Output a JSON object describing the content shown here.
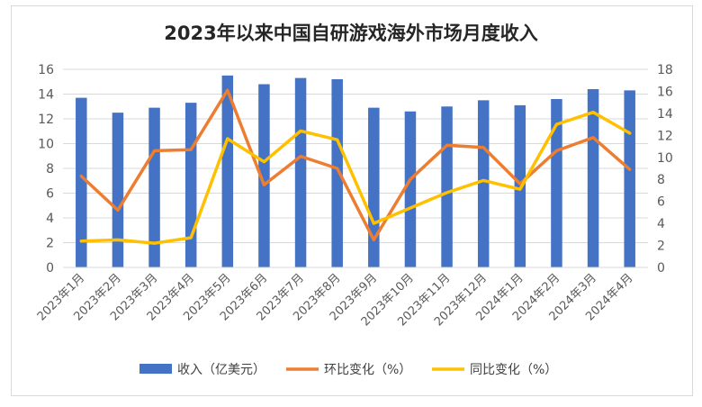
{
  "chart_data": {
    "type": "bar",
    "title": "2023年以来中国自研游戏海外市场月度收入",
    "categories": [
      "2023年1月",
      "2023年2月",
      "2023年3月",
      "2023年4月",
      "2023年5月",
      "2023年6月",
      "2023年7月",
      "2023年8月",
      "2023年9月",
      "2023年10月",
      "2023年11月",
      "2023年12月",
      "2024年1月",
      "2024年2月",
      "2024年3月",
      "2024年4月"
    ],
    "y_left": {
      "min": 0,
      "max": 16,
      "step": 2
    },
    "y_right": {
      "min": 0,
      "max": 18,
      "step": 2
    },
    "grid": true,
    "legend_position": "bottom",
    "series": [
      {
        "name": "收入（亿美元）",
        "type": "bar",
        "axis": "left",
        "color": "#4472c4",
        "values": [
          13.7,
          12.5,
          12.9,
          13.3,
          15.5,
          14.8,
          15.3,
          15.2,
          12.9,
          12.6,
          13.0,
          13.5,
          13.1,
          13.6,
          14.4,
          14.3
        ]
      },
      {
        "name": "环比变化（%）",
        "type": "line",
        "axis": "right",
        "color": "#ed7d31",
        "values": [
          8.3,
          5.2,
          10.6,
          10.7,
          16.1,
          7.5,
          10.1,
          9.0,
          2.5,
          8.0,
          11.1,
          10.9,
          7.6,
          10.6,
          11.8,
          8.9
        ]
      },
      {
        "name": "同比变化（%）",
        "type": "line",
        "axis": "right",
        "color": "#ffc000",
        "values": [
          2.4,
          2.5,
          2.2,
          2.7,
          11.7,
          9.6,
          12.4,
          11.6,
          4.0,
          5.4,
          6.8,
          7.9,
          7.1,
          13.0,
          14.1,
          12.2
        ]
      }
    ]
  }
}
